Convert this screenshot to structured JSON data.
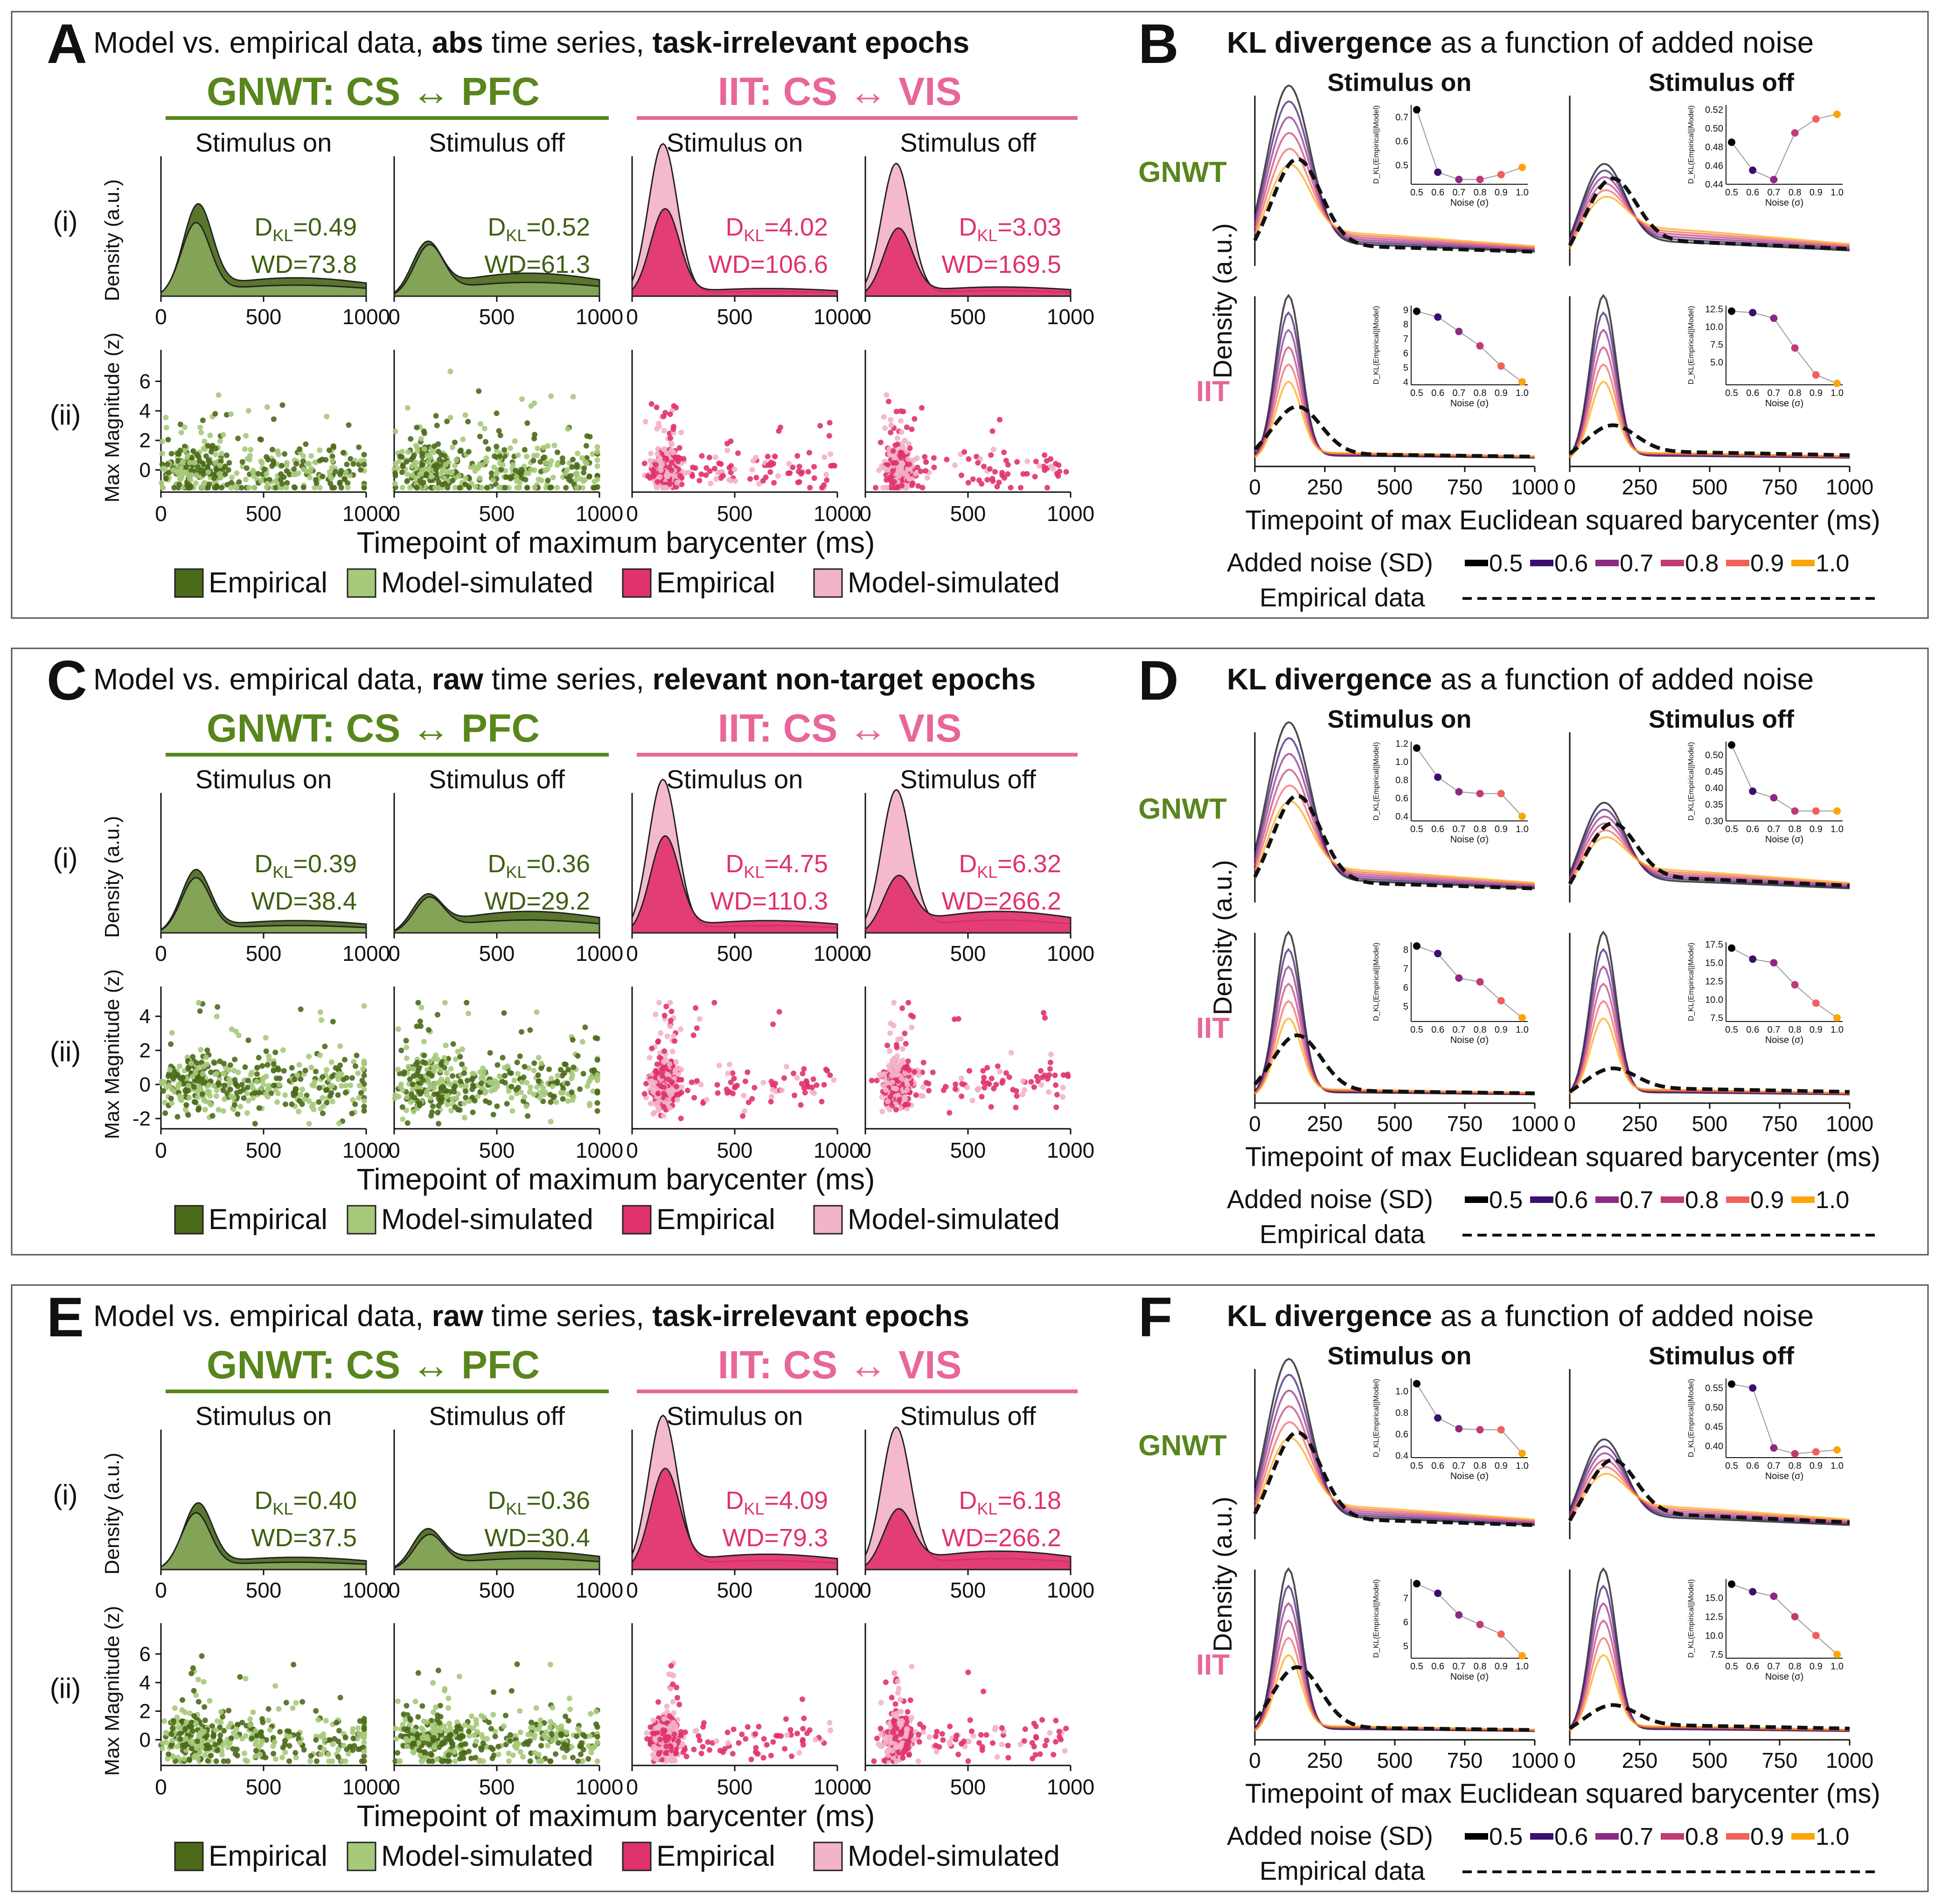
{
  "palette": {
    "gnwt_emp": "#4b6a1a",
    "gnwt_sim": "#a6c97a",
    "gnwt_text": "#58861c",
    "gnwt_dkl": "#3f5f12",
    "iit_emp": "#e0326e",
    "iit_sim": "#f3b3c8",
    "iit_text": "#e8669a",
    "iit_dkl": "#e0326e",
    "noise_colors": [
      "#000000",
      "#3b0f6f",
      "#8c2981",
      "#c03a76",
      "#f1605d",
      "#fca50a"
    ]
  },
  "left_common": {
    "gnwt_header": "GNWT: CS ↔ PFC",
    "iit_header": "IIT: CS ↔ VIS",
    "stim_on": "Stimulus on",
    "stim_off": "Stimulus off",
    "row_i": "(i)",
    "row_ii": "(ii)",
    "density_label": "Density (a.u.)",
    "mag_label": "Max Magnitude (z)",
    "xlabel": "Timepoint of maximum barycenter (ms)",
    "legend": [
      "Empirical",
      "Model-simulated",
      "Empirical",
      "Model-simulated"
    ],
    "xticks": [
      "0",
      "500",
      "1000"
    ],
    "xticks_first": [
      "0",
      "500",
      "1000"
    ]
  },
  "right_common": {
    "title_bold": "KL divergence",
    "title_rest": " as a function of added noise",
    "stim_on": "Stimulus on",
    "stim_off": "Stimulus off",
    "gnwt": "GNWT",
    "iit": "IIT",
    "ylabel": "Density (a.u.)",
    "xlabel": "Timepoint of max Euclidean squared barycenter (ms)",
    "xticks": [
      "0",
      "250",
      "500",
      "750",
      "1000"
    ],
    "legend_title": "Added noise (SD)",
    "noise_levels": [
      "0.5",
      "0.6",
      "0.7",
      "0.8",
      "0.9",
      "1.0"
    ],
    "empirical_label": "Empirical data",
    "inset_ylabel": "D_KL(Empirical||Model)",
    "inset_xlabel": "Noise (σ)",
    "inset_xticks": [
      "0.5",
      "0.6",
      "0.7",
      "0.8",
      "0.9",
      "1.0"
    ]
  },
  "left_panels": [
    {
      "letter": "A",
      "title_parts": [
        {
          "t": "Model vs. empirical data, ",
          "b": false
        },
        {
          "t": "abs",
          "b": true
        },
        {
          "t": " time series, ",
          "b": false
        },
        {
          "t": "task-irrelevant epochs",
          "b": true
        }
      ],
      "scatter_yticks": [
        "0",
        "2",
        "4",
        "6"
      ],
      "scatter_range": [
        -1.5,
        7.5
      ],
      "subplots": [
        {
          "dkl": "0.49",
          "wd": "WD=73.8",
          "emp_peak": 180,
          "emp_h": 0.55,
          "sim_peak": 170,
          "sim_h": 0.45,
          "emp_tail": 0.12
        },
        {
          "dkl": "0.52",
          "wd": "WD=61.3",
          "emp_peak": 160,
          "emp_h": 0.3,
          "sim_peak": 170,
          "sim_h": 0.3,
          "emp_tail": 0.15
        },
        {
          "dkl": "4.02",
          "wd": "WD=106.6",
          "emp_peak": 160,
          "emp_h": 0.55,
          "sim_peak": 150,
          "sim_h": 0.98,
          "emp_tail": 0.05
        },
        {
          "dkl": "3.03",
          "wd": "WD=169.5",
          "emp_peak": 160,
          "emp_h": 0.42,
          "sim_peak": 150,
          "sim_h": 0.85,
          "emp_tail": 0.06
        }
      ]
    },
    {
      "letter": "C",
      "title_parts": [
        {
          "t": "Model vs. empirical data, ",
          "b": false
        },
        {
          "t": "raw",
          "b": true
        },
        {
          "t": " time series, ",
          "b": false
        },
        {
          "t": "relevant non-target epochs",
          "b": true
        }
      ],
      "scatter_yticks": [
        "-2",
        "0",
        "2",
        "4"
      ],
      "scatter_range": [
        -2.6,
        5.2
      ],
      "subplots": [
        {
          "dkl": "0.39",
          "wd": "WD=38.4",
          "emp_peak": 170,
          "emp_h": 0.38,
          "sim_peak": 170,
          "sim_h": 0.34,
          "emp_tail": 0.08
        },
        {
          "dkl": "0.36",
          "wd": "WD=29.2",
          "emp_peak": 160,
          "emp_h": 0.2,
          "sim_peak": 170,
          "sim_h": 0.2,
          "emp_tail": 0.14
        },
        {
          "dkl": "4.75",
          "wd": "WD=110.3",
          "emp_peak": 160,
          "emp_h": 0.6,
          "sim_peak": 150,
          "sim_h": 0.98,
          "emp_tail": 0.08
        },
        {
          "dkl": "6.32",
          "wd": "WD=266.2",
          "emp_peak": 160,
          "emp_h": 0.32,
          "sim_peak": 150,
          "sim_h": 0.9,
          "emp_tail": 0.14
        }
      ]
    },
    {
      "letter": "E",
      "title_parts": [
        {
          "t": "Model vs. empirical data, ",
          "b": false
        },
        {
          "t": "raw",
          "b": true
        },
        {
          "t": " time series, ",
          "b": false
        },
        {
          "t": "task-irrelevant epochs",
          "b": true
        }
      ],
      "scatter_yticks": [
        "0",
        "2",
        "4",
        "6"
      ],
      "scatter_range": [
        -1.8,
        7.5
      ],
      "subplots": [
        {
          "dkl": "0.40",
          "wd": "WD=37.5",
          "emp_peak": 180,
          "emp_h": 0.4,
          "sim_peak": 170,
          "sim_h": 0.35,
          "emp_tail": 0.08
        },
        {
          "dkl": "0.36",
          "wd": "WD=30.4",
          "emp_peak": 160,
          "emp_h": 0.22,
          "sim_peak": 170,
          "sim_h": 0.2,
          "emp_tail": 0.12
        },
        {
          "dkl": "4.09",
          "wd": "WD=79.3",
          "emp_peak": 160,
          "emp_h": 0.62,
          "sim_peak": 150,
          "sim_h": 0.98,
          "emp_tail": 0.1
        },
        {
          "dkl": "6.18",
          "wd": "WD=266.2",
          "emp_peak": 160,
          "emp_h": 0.35,
          "sim_peak": 150,
          "sim_h": 0.9,
          "emp_tail": 0.12
        }
      ]
    }
  ],
  "right_panels": [
    {
      "letter": "B",
      "insets": [
        {
          "values": [
            0.73,
            0.47,
            0.44,
            0.44,
            0.46,
            0.49
          ],
          "yticks": [
            "0.5",
            "0.6",
            "0.7"
          ],
          "ylim": [
            0.42,
            0.75
          ]
        },
        {
          "values": [
            0.485,
            0.455,
            0.445,
            0.495,
            0.51,
            0.515
          ],
          "yticks": [
            "0.44",
            "0.46",
            "0.48",
            "0.50",
            "0.52"
          ],
          "ylim": [
            0.44,
            0.525
          ]
        },
        {
          "values": [
            8.9,
            8.5,
            7.5,
            6.5,
            5.1,
            4.0
          ],
          "yticks": [
            "4",
            "5",
            "6",
            "7",
            "8",
            "9"
          ],
          "ylim": [
            3.8,
            9.3
          ]
        },
        {
          "values": [
            12.2,
            12.0,
            11.2,
            7.0,
            3.2,
            2.0
          ],
          "yticks": [
            "5.0",
            "7.5",
            "10.0",
            "12.5"
          ],
          "ylim": [
            1.8,
            13.0
          ]
        }
      ],
      "densities": [
        {
          "peak": 1.0,
          "base_tail": 0.12,
          "emp_peak": 0.55,
          "emp_tail": 0.1
        },
        {
          "peak": 0.5,
          "base_tail": 0.14,
          "emp_peak": 0.4,
          "emp_tail": 0.14
        },
        {
          "peak": 1.0,
          "base_tail": 0.03,
          "emp_peak": 0.3,
          "emp_tail": 0.04
        },
        {
          "peak": 1.0,
          "base_tail": 0.03,
          "emp_peak": 0.17,
          "emp_tail": 0.06
        }
      ]
    },
    {
      "letter": "D",
      "insets": [
        {
          "values": [
            1.15,
            0.83,
            0.67,
            0.65,
            0.65,
            0.4
          ],
          "yticks": [
            "0.4",
            "0.6",
            "0.8",
            "1.0",
            "1.2"
          ],
          "ylim": [
            0.35,
            1.22
          ]
        },
        {
          "values": [
            0.53,
            0.39,
            0.37,
            0.33,
            0.33,
            0.33
          ],
          "yticks": [
            "0.30",
            "0.35",
            "0.40",
            "0.45",
            "0.50"
          ],
          "ylim": [
            0.3,
            0.54
          ]
        },
        {
          "values": [
            8.2,
            7.8,
            6.5,
            6.3,
            5.3,
            4.4
          ],
          "yticks": [
            "5",
            "6",
            "7",
            "8"
          ],
          "ylim": [
            4.2,
            8.4
          ]
        },
        {
          "values": [
            17.0,
            15.5,
            15.0,
            12.0,
            9.5,
            7.5
          ],
          "yticks": [
            "7.5",
            "10.0",
            "12.5",
            "15.0",
            "17.5"
          ],
          "ylim": [
            7.0,
            17.8
          ]
        }
      ],
      "densities": [
        {
          "peak": 1.0,
          "base_tail": 0.12,
          "emp_peak": 0.55,
          "emp_tail": 0.1
        },
        {
          "peak": 0.5,
          "base_tail": 0.12,
          "emp_peak": 0.35,
          "emp_tail": 0.14
        },
        {
          "peak": 1.0,
          "base_tail": 0.03,
          "emp_peak": 0.35,
          "emp_tail": 0.04
        },
        {
          "peak": 1.0,
          "base_tail": 0.03,
          "emp_peak": 0.13,
          "emp_tail": 0.06
        }
      ]
    },
    {
      "letter": "F",
      "insets": [
        {
          "values": [
            1.07,
            0.75,
            0.65,
            0.64,
            0.64,
            0.42
          ],
          "yticks": [
            "0.4",
            "0.6",
            "0.8",
            "1.0"
          ],
          "ylim": [
            0.38,
            1.12
          ]
        },
        {
          "values": [
            0.56,
            0.55,
            0.395,
            0.38,
            0.385,
            0.39
          ],
          "yticks": [
            "0.40",
            "0.45",
            "0.50",
            "0.55"
          ],
          "ylim": [
            0.37,
            0.575
          ]
        },
        {
          "values": [
            7.6,
            7.2,
            6.3,
            5.9,
            5.5,
            4.6
          ],
          "yticks": [
            "5",
            "6",
            "7"
          ],
          "ylim": [
            4.5,
            7.8
          ]
        },
        {
          "values": [
            16.8,
            15.8,
            15.2,
            12.5,
            10.0,
            7.5
          ],
          "yticks": [
            "7.5",
            "10.0",
            "12.5",
            "15.0"
          ],
          "ylim": [
            7.0,
            17.5
          ]
        }
      ],
      "densities": [
        {
          "peak": 1.0,
          "base_tail": 0.12,
          "emp_peak": 0.55,
          "emp_tail": 0.1
        },
        {
          "peak": 0.5,
          "base_tail": 0.12,
          "emp_peak": 0.35,
          "emp_tail": 0.14
        },
        {
          "peak": 1.0,
          "base_tail": 0.03,
          "emp_peak": 0.38,
          "emp_tail": 0.04
        },
        {
          "peak": 1.0,
          "base_tail": 0.03,
          "emp_peak": 0.13,
          "emp_tail": 0.06
        }
      ]
    }
  ],
  "chart_data": [
    {
      "panel": "A",
      "type": "area",
      "series": [
        {
          "name": "GNWT Stimulus on",
          "values": [
            "D_KL=0.49",
            "WD=73.8"
          ]
        },
        {
          "name": "GNWT Stimulus off",
          "values": [
            "D_KL=0.52",
            "WD=61.3"
          ]
        },
        {
          "name": "IIT Stimulus on",
          "values": [
            "D_KL=4.02",
            "WD=106.6"
          ]
        },
        {
          "name": "IIT Stimulus off",
          "values": [
            "D_KL=3.03",
            "WD=169.5"
          ]
        }
      ],
      "xlabel": "Timepoint of maximum barycenter (ms)",
      "xlim": [
        0,
        1000
      ]
    },
    {
      "panel": "B",
      "type": "line",
      "x": [
        0.5,
        0.6,
        0.7,
        0.8,
        0.9,
        1.0
      ],
      "series": [
        {
          "name": "GNWT Stimulus on",
          "values": [
            0.73,
            0.47,
            0.44,
            0.44,
            0.46,
            0.49
          ]
        },
        {
          "name": "GNWT Stimulus off",
          "values": [
            0.485,
            0.455,
            0.445,
            0.495,
            0.51,
            0.515
          ]
        },
        {
          "name": "IIT Stimulus on",
          "values": [
            8.9,
            8.5,
            7.5,
            6.5,
            5.1,
            4.0
          ]
        },
        {
          "name": "IIT Stimulus off",
          "values": [
            12.2,
            12.0,
            11.2,
            7.0,
            3.2,
            2.0
          ]
        }
      ],
      "xlabel": "Noise (σ)",
      "ylabel": "D_KL(Empirical||Model)"
    },
    {
      "panel": "C",
      "type": "area",
      "series": [
        {
          "name": "GNWT Stimulus on",
          "values": [
            "D_KL=0.39",
            "WD=38.4"
          ]
        },
        {
          "name": "GNWT Stimulus off",
          "values": [
            "D_KL=0.36",
            "WD=29.2"
          ]
        },
        {
          "name": "IIT Stimulus on",
          "values": [
            "D_KL=4.75",
            "WD=110.3"
          ]
        },
        {
          "name": "IIT Stimulus off",
          "values": [
            "D_KL=6.32",
            "WD=266.2"
          ]
        }
      ],
      "xlabel": "Timepoint of maximum barycenter (ms)",
      "xlim": [
        0,
        1000
      ]
    },
    {
      "panel": "D",
      "type": "line",
      "x": [
        0.5,
        0.6,
        0.7,
        0.8,
        0.9,
        1.0
      ],
      "series": [
        {
          "name": "GNWT Stimulus on",
          "values": [
            1.15,
            0.83,
            0.67,
            0.65,
            0.65,
            0.4
          ]
        },
        {
          "name": "GNWT Stimulus off",
          "values": [
            0.53,
            0.39,
            0.37,
            0.33,
            0.33,
            0.33
          ]
        },
        {
          "name": "IIT Stimulus on",
          "values": [
            8.2,
            7.8,
            6.5,
            6.3,
            5.3,
            4.4
          ]
        },
        {
          "name": "IIT Stimulus off",
          "values": [
            17.0,
            15.5,
            15.0,
            12.0,
            9.5,
            7.5
          ]
        }
      ],
      "xlabel": "Noise (σ)",
      "ylabel": "D_KL(Empirical||Model)"
    },
    {
      "panel": "E",
      "type": "area",
      "series": [
        {
          "name": "GNWT Stimulus on",
          "values": [
            "D_KL=0.40",
            "WD=37.5"
          ]
        },
        {
          "name": "GNWT Stimulus off",
          "values": [
            "D_KL=0.36",
            "WD=30.4"
          ]
        },
        {
          "name": "IIT Stimulus on",
          "values": [
            "D_KL=4.09",
            "WD=79.3"
          ]
        },
        {
          "name": "IIT Stimulus off",
          "values": [
            "D_KL=6.18",
            "WD=266.2"
          ]
        }
      ],
      "xlabel": "Timepoint of maximum barycenter (ms)",
      "xlim": [
        0,
        1000
      ]
    },
    {
      "panel": "F",
      "type": "line",
      "x": [
        0.5,
        0.6,
        0.7,
        0.8,
        0.9,
        1.0
      ],
      "series": [
        {
          "name": "GNWT Stimulus on",
          "values": [
            1.07,
            0.75,
            0.65,
            0.64,
            0.64,
            0.42
          ]
        },
        {
          "name": "GNWT Stimulus off",
          "values": [
            0.56,
            0.55,
            0.395,
            0.38,
            0.385,
            0.39
          ]
        },
        {
          "name": "IIT Stimulus on",
          "values": [
            7.6,
            7.2,
            6.3,
            5.9,
            5.5,
            4.6
          ]
        },
        {
          "name": "IIT Stimulus off",
          "values": [
            16.8,
            15.8,
            15.2,
            12.5,
            10.0,
            7.5
          ]
        }
      ],
      "xlabel": "Noise (σ)",
      "ylabel": "D_KL(Empirical||Model)"
    }
  ]
}
